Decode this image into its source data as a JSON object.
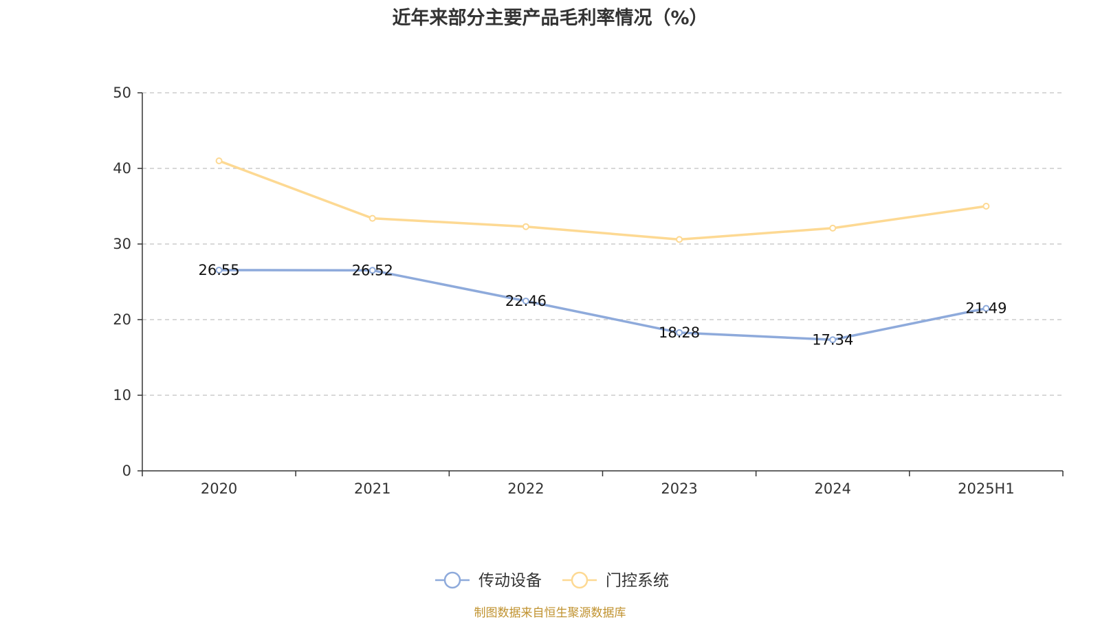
{
  "chart_data": {
    "type": "line",
    "title": "近年来部分主要产品毛利率情况（%）",
    "categories": [
      "2020",
      "2021",
      "2022",
      "2023",
      "2024",
      "2025H1"
    ],
    "series": [
      {
        "name": "传动设备",
        "color": "#8eaadb",
        "values": [
          26.55,
          26.52,
          22.46,
          18.28,
          17.34,
          21.49
        ],
        "show_labels": true
      },
      {
        "name": "门控系统",
        "color": "#fdd993",
        "values": [
          41.0,
          33.4,
          32.3,
          30.6,
          32.1,
          35.0
        ],
        "show_labels": false
      }
    ],
    "ylim": [
      0,
      50
    ],
    "yticks": [
      0,
      10,
      20,
      30,
      40,
      50
    ],
    "grid": true,
    "legend_position": "bottom-center"
  },
  "source": "制图数据来自恒生聚源数据库"
}
